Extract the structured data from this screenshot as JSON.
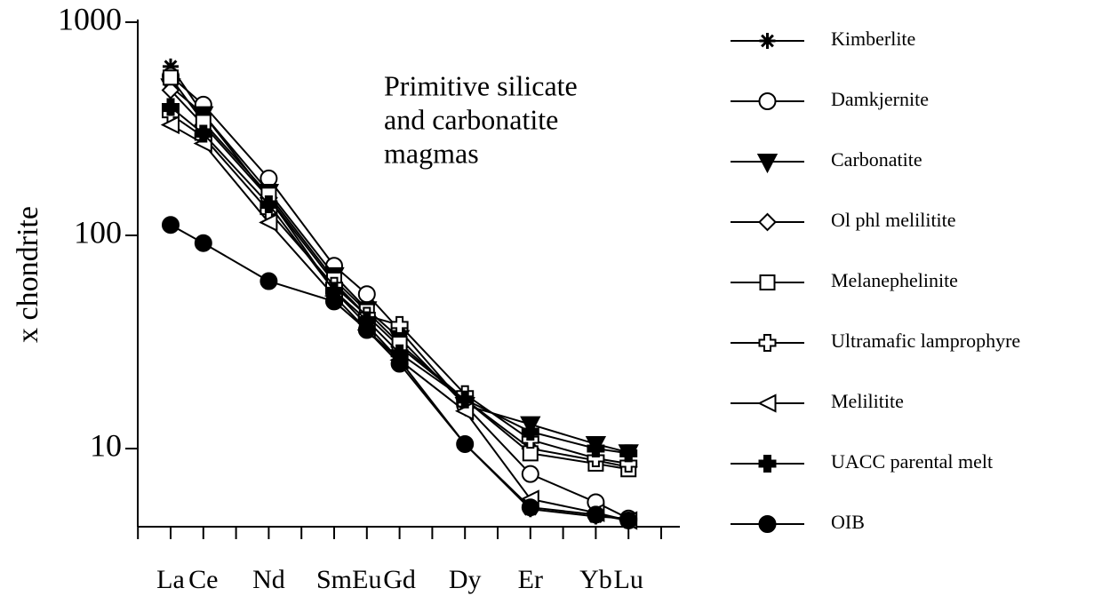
{
  "chart_data": {
    "type": "line",
    "annotation": [
      "Primitive silicate",
      "and carbonatite",
      "magmas"
    ],
    "y_label": "x chondrite",
    "categories": [
      "La",
      "Ce",
      "Nd",
      "Sm",
      "Eu",
      "Gd",
      "Dy",
      "Er",
      "Yb",
      "Lu"
    ],
    "log_y": true,
    "ylim": [
      4.3,
      1000
    ],
    "yticks": [
      10,
      100,
      1000
    ],
    "legend": "right",
    "series": [
      {
        "name": "Kimberlite",
        "color": "#000000",
        "marker": "star",
        "values": [
          620,
          370,
          150,
          55,
          38,
          26,
          10.5,
          5.2,
          4.8,
          4.7
        ]
      },
      {
        "name": "Damkjernite",
        "color": "#000000",
        "marker": "circle-open",
        "values": [
          560,
          410,
          185,
          72,
          53,
          36,
          16,
          7.6,
          5.6,
          4.7
        ]
      },
      {
        "name": "Carbonatite",
        "color": "#000000",
        "marker": "triangle-down",
        "values": [
          500,
          370,
          160,
          65,
          45,
          33,
          16,
          13,
          10.5,
          9.6
        ]
      },
      {
        "name": "Ol phl melilitite",
        "color": "#000000",
        "marker": "diamond-open",
        "values": [
          480,
          330,
          150,
          60,
          42,
          30,
          17,
          10,
          8.8,
          8.2
        ]
      },
      {
        "name": "Melanephelinite",
        "color": "#000000",
        "marker": "square-open",
        "values": [
          550,
          340,
          155,
          62,
          44,
          31,
          17,
          9.5,
          8.5,
          8
        ]
      },
      {
        "name": "Ultramafic lamprophyre",
        "color": "#000000",
        "marker": "plus-open",
        "values": [
          370,
          290,
          130,
          58,
          42,
          38,
          18,
          11,
          9,
          8.5
        ]
      },
      {
        "name": "Melilitite",
        "color": "#000000",
        "marker": "triangle-left-open",
        "values": [
          330,
          270,
          115,
          52,
          36,
          26,
          15,
          5.8,
          5,
          4.6
        ]
      },
      {
        "name": "UACC parental melt",
        "color": "#000000",
        "marker": "plus",
        "values": [
          400,
          300,
          140,
          55,
          40,
          28,
          17,
          12,
          10,
          9.5
        ]
      },
      {
        "name": "OIB",
        "color": "#000000",
        "marker": "circle",
        "values": [
          112,
          92,
          61,
          49,
          36,
          25,
          10.5,
          5.3,
          4.9,
          4.6
        ]
      }
    ]
  }
}
